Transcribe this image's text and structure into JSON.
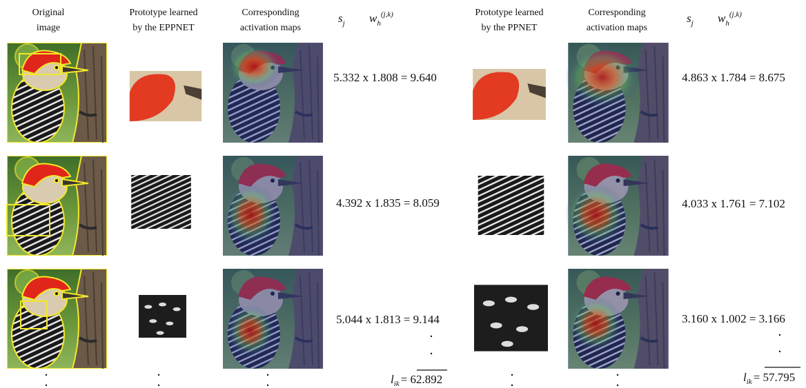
{
  "left": {
    "headers": [
      [
        "Original",
        "image"
      ],
      [
        "Prototype learned",
        "by the EPPNET"
      ],
      [
        "Corresponding",
        "activation maps"
      ]
    ],
    "s_j": {
      "base": "s",
      "sub": "j"
    },
    "w": {
      "base": "w",
      "sub": "h",
      "sup": "(j,k)"
    },
    "rows": [
      "5.332 x 1.808 = 9.640",
      "4.392 x 1.835 = 8.059",
      "5.044 x 1.813 = 9.144"
    ],
    "total": {
      "base": "l",
      "sub": "ik",
      "rest": "= 62.892"
    }
  },
  "right": {
    "headers": [
      [
        "Prototype learned",
        "by the PPNET"
      ],
      [
        "Corresponding",
        "activation maps"
      ]
    ],
    "s_j": {
      "base": "s",
      "sub": "j"
    },
    "w": {
      "base": "w",
      "sub": "h",
      "sup": "(j,k)"
    },
    "rows": [
      "4.863 x 1.784 = 8.675",
      "4.033 x 1.761 = 7.102",
      "3.160 x 1.002 = 3.166"
    ],
    "total": {
      "base": "l",
      "sub": "ik",
      "rest": "= 57.795"
    }
  }
}
